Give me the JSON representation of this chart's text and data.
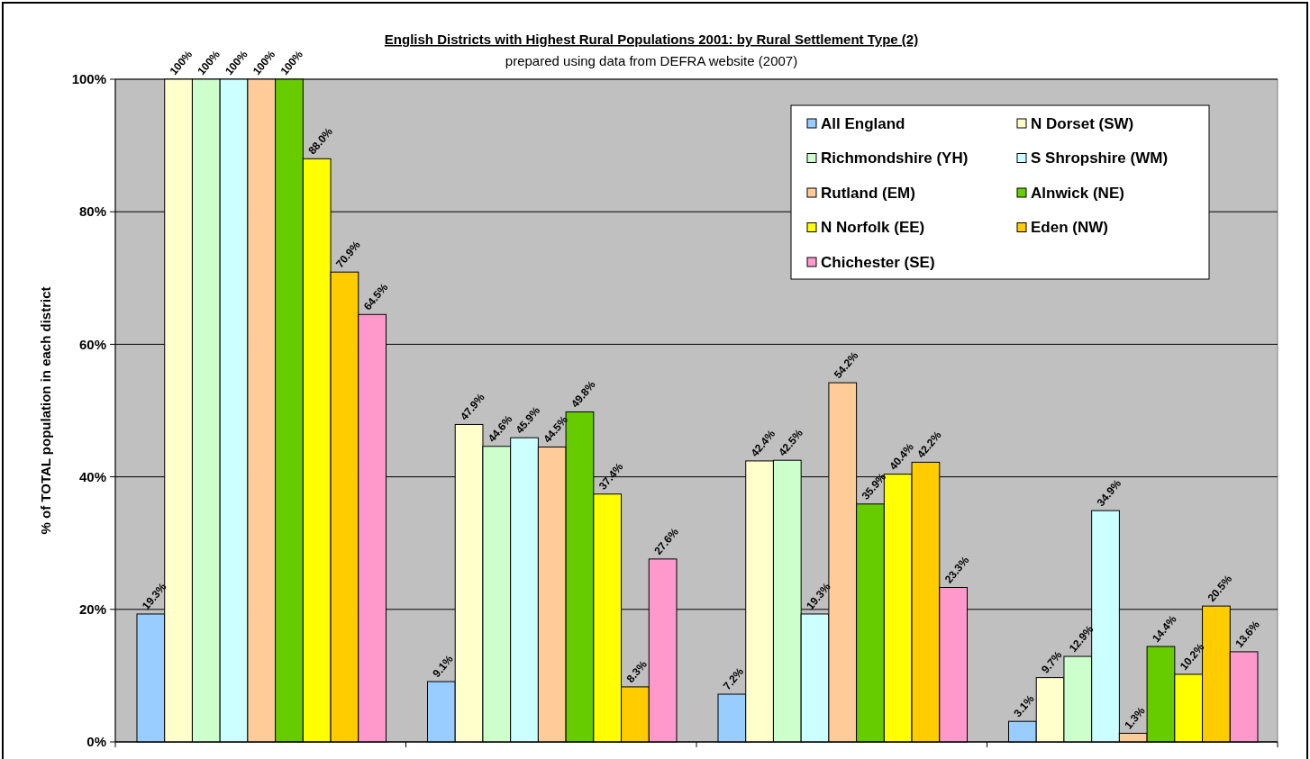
{
  "chart_data": {
    "type": "bar",
    "title": "English Districts with Highest Rural Populations 2001: by Rural Settlement Type (2)",
    "subtitle": "prepared using data from DEFRA website (2007)",
    "ylabel": "% of TOTAL population in each district",
    "categories": [
      null,
      null,
      null,
      null
    ],
    "series": [
      {
        "name": "All England",
        "color": "#99ccff",
        "values": [
          19.3,
          9.1,
          7.2,
          3.1
        ],
        "value_labels": [
          "19.3%",
          "9.1%",
          "7.2%",
          "3.1%"
        ]
      },
      {
        "name": "N Dorset (SW)",
        "color": "#ffffcc",
        "values": [
          100,
          47.9,
          42.4,
          9.7
        ],
        "value_labels": [
          "100%",
          "47.9%",
          "42.4%",
          "9.7%"
        ]
      },
      {
        "name": "Richmondshire (YH)",
        "color": "#ccffcc",
        "values": [
          100,
          44.6,
          42.5,
          12.9
        ],
        "value_labels": [
          "100%",
          "44.6%",
          "42.5%",
          "12.9%"
        ]
      },
      {
        "name": "S Shropshire (WM)",
        "color": "#ccffff",
        "values": [
          100,
          45.9,
          19.3,
          34.9
        ],
        "value_labels": [
          "100%",
          "45.9%",
          "19.3%",
          "34.9%"
        ]
      },
      {
        "name": "Rutland (EM)",
        "color": "#ffcc99",
        "values": [
          100,
          44.5,
          54.2,
          1.3
        ],
        "value_labels": [
          "100%",
          "44.5%",
          "54.2%",
          "1.3%"
        ]
      },
      {
        "name": "Alnwick (NE)",
        "color": "#66cc00",
        "values": [
          100,
          49.8,
          35.9,
          14.4
        ],
        "value_labels": [
          "100%",
          "49.8%",
          "35.9%",
          "14.4%"
        ]
      },
      {
        "name": "N Norfolk (EE)",
        "color": "#ffff00",
        "values": [
          88.0,
          37.4,
          40.4,
          10.2
        ],
        "value_labels": [
          "88.0%",
          "37.4%",
          "40.4%",
          "10.2%"
        ]
      },
      {
        "name": "Eden (NW)",
        "color": "#ffcc00",
        "values": [
          70.9,
          8.3,
          42.2,
          20.5
        ],
        "value_labels": [
          "70.9%",
          "8.3%",
          "42.2%",
          "20.5%"
        ]
      },
      {
        "name": "Chichester (SE)",
        "color": "#ff99cc",
        "values": [
          64.5,
          27.6,
          23.3,
          13.6
        ],
        "value_labels": [
          "64.5%",
          "27.6%",
          "23.3%",
          "13.6%"
        ]
      }
    ],
    "ylim": [
      0,
      100
    ],
    "yticks": [
      {
        "value": 0,
        "label": "0%"
      },
      {
        "value": 20,
        "label": "20%"
      },
      {
        "value": 40,
        "label": "40%"
      },
      {
        "value": 60,
        "label": "60%"
      },
      {
        "value": 80,
        "label": "80%"
      },
      {
        "value": 100,
        "label": "100%"
      }
    ],
    "grid": "y",
    "legend": "top right"
  }
}
